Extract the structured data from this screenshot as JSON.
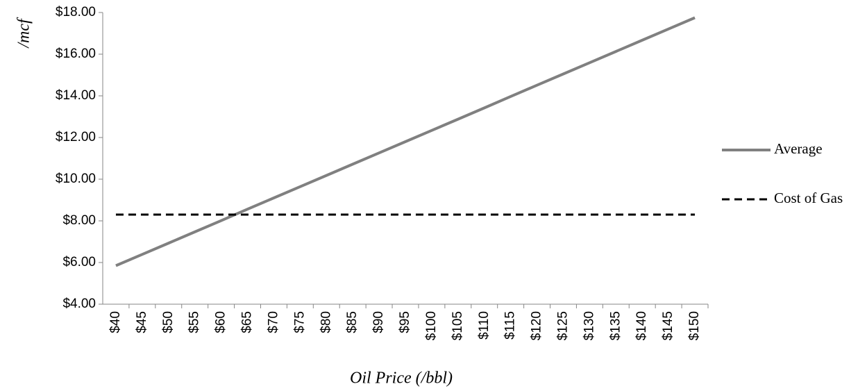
{
  "chart_data": {
    "type": "line",
    "x_label": "Oil Price (/bbl)",
    "y_label": "/mcf",
    "categories": [
      "$40",
      "$45",
      "$50",
      "$55",
      "$60",
      "$65",
      "$70",
      "$75",
      "$80",
      "$85",
      "$90",
      "$95",
      "$100",
      "$105",
      "$110",
      "$115",
      "$120",
      "$125",
      "$130",
      "$135",
      "$140",
      "$145",
      "$150"
    ],
    "series": [
      {
        "name": "Average",
        "color": "#808080",
        "dashed": false,
        "values": [
          5.85,
          6.39,
          6.93,
          7.47,
          8.01,
          8.56,
          9.1,
          9.64,
          10.18,
          10.72,
          11.26,
          11.8,
          12.34,
          12.88,
          13.42,
          13.97,
          14.51,
          15.05,
          15.59,
          16.13,
          16.67,
          17.21,
          17.75
        ]
      },
      {
        "name": "Cost of Gas",
        "color": "#000000",
        "dashed": true,
        "values": [
          8.3,
          8.3,
          8.3,
          8.3,
          8.3,
          8.3,
          8.3,
          8.3,
          8.3,
          8.3,
          8.3,
          8.3,
          8.3,
          8.3,
          8.3,
          8.3,
          8.3,
          8.3,
          8.3,
          8.3,
          8.3,
          8.3,
          8.3
        ]
      }
    ],
    "ylim": [
      4,
      18
    ],
    "yticks": [
      {
        "value": 4,
        "label": "$4.00"
      },
      {
        "value": 6,
        "label": "$6.00"
      },
      {
        "value": 8,
        "label": "$8.00"
      },
      {
        "value": 10,
        "label": "$10.00"
      },
      {
        "value": 12,
        "label": "$12.00"
      },
      {
        "value": 14,
        "label": "$14.00"
      },
      {
        "value": 16,
        "label": "$16.00"
      },
      {
        "value": 18,
        "label": "$18.00"
      }
    ],
    "grid": false,
    "legend": "right"
  }
}
